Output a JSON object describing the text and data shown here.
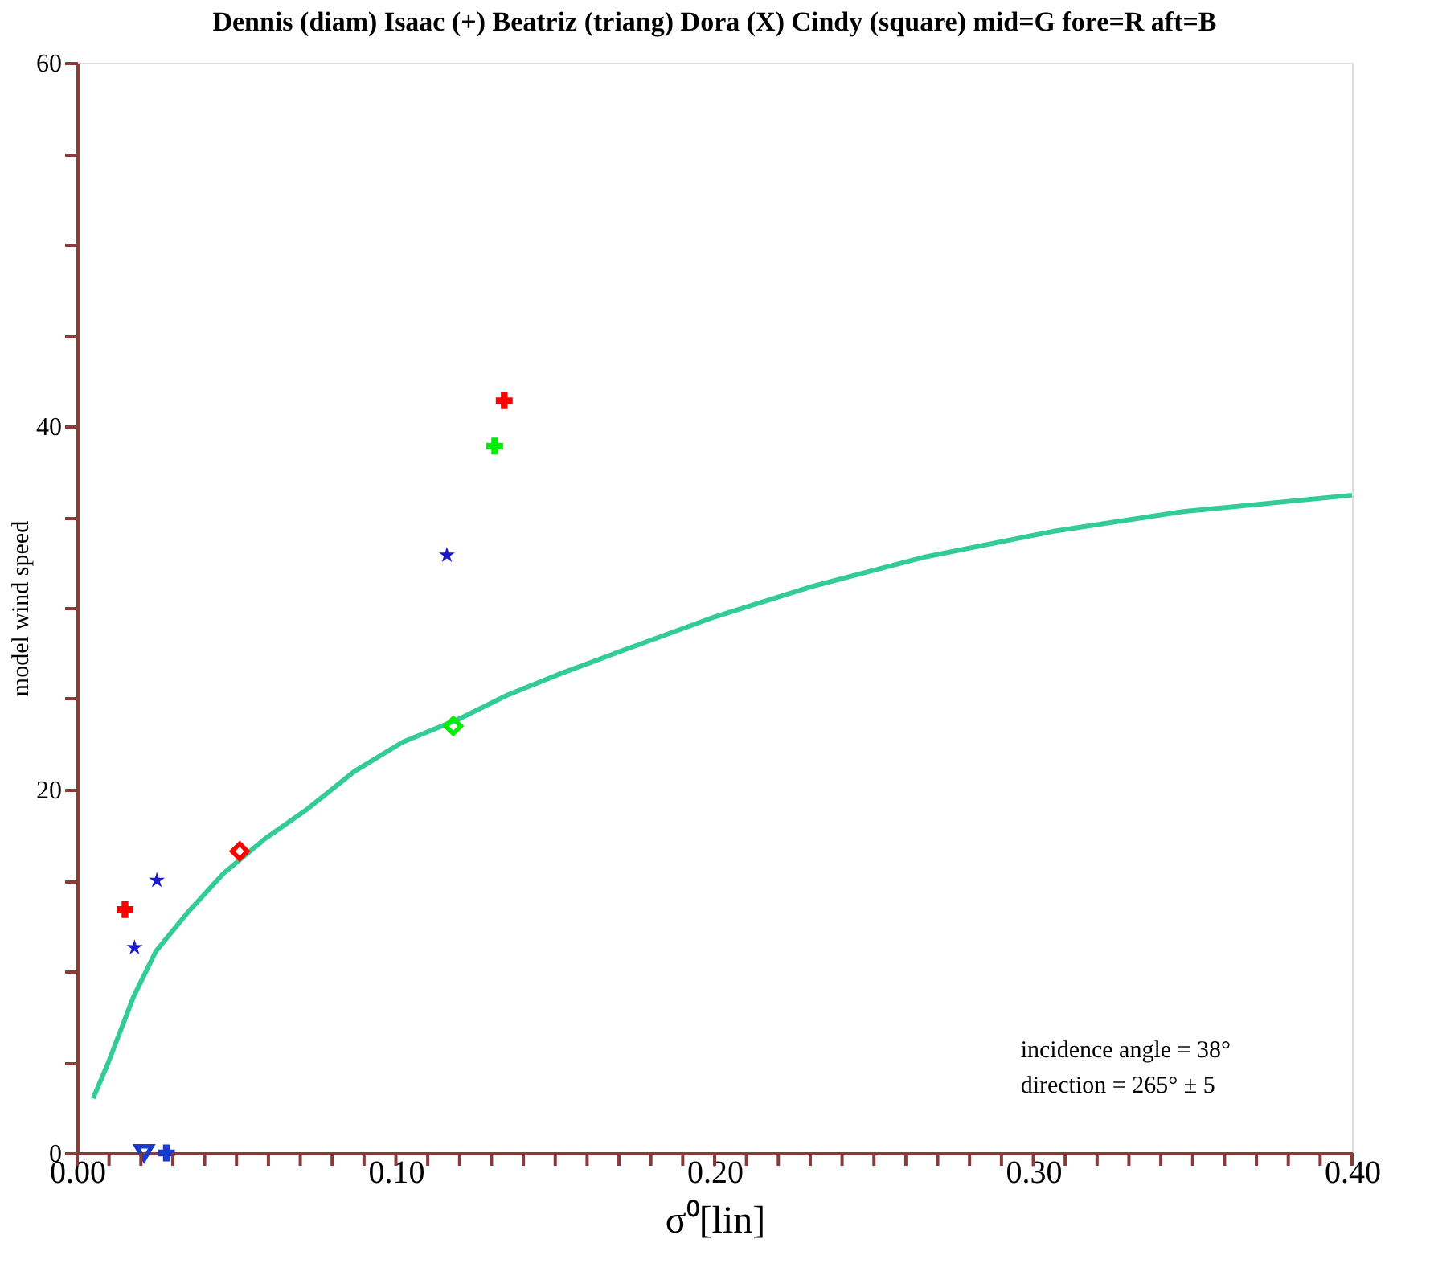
{
  "chart_data": {
    "type": "scatter",
    "title": "Dennis (diam) Isaac (+) Beatriz (triang) Dora (X) Cindy (square)  mid=G  fore=R  aft=B",
    "xlabel": "σ⁰[lin]",
    "ylabel": "model wind speed",
    "xlim": [
      0,
      0.4
    ],
    "ylim": [
      0,
      60
    ],
    "xticks": [
      {
        "value": 0,
        "label": "0.00"
      },
      {
        "value": 0.01,
        "label": null
      },
      {
        "value": 0.02,
        "label": null
      },
      {
        "value": 0.03,
        "label": null
      },
      {
        "value": 0.04,
        "label": null
      },
      {
        "value": 0.05,
        "label": null
      },
      {
        "value": 0.06,
        "label": null
      },
      {
        "value": 0.07,
        "label": null
      },
      {
        "value": 0.08,
        "label": null
      },
      {
        "value": 0.09,
        "label": null
      },
      {
        "value": 0.1,
        "label": "0.10"
      },
      {
        "value": 0.11,
        "label": null
      },
      {
        "value": 0.12,
        "label": null
      },
      {
        "value": 0.13,
        "label": null
      },
      {
        "value": 0.14,
        "label": null
      },
      {
        "value": 0.15,
        "label": null
      },
      {
        "value": 0.16,
        "label": null
      },
      {
        "value": 0.17,
        "label": null
      },
      {
        "value": 0.18,
        "label": null
      },
      {
        "value": 0.19,
        "label": null
      },
      {
        "value": 0.2,
        "label": "0.20"
      },
      {
        "value": 0.21,
        "label": null
      },
      {
        "value": 0.22,
        "label": null
      },
      {
        "value": 0.23,
        "label": null
      },
      {
        "value": 0.24,
        "label": null
      },
      {
        "value": 0.25,
        "label": null
      },
      {
        "value": 0.26,
        "label": null
      },
      {
        "value": 0.27,
        "label": null
      },
      {
        "value": 0.28,
        "label": null
      },
      {
        "value": 0.29,
        "label": null
      },
      {
        "value": 0.3,
        "label": "0.30"
      },
      {
        "value": 0.31,
        "label": null
      },
      {
        "value": 0.32,
        "label": null
      },
      {
        "value": 0.33,
        "label": null
      },
      {
        "value": 0.34,
        "label": null
      },
      {
        "value": 0.35,
        "label": null
      },
      {
        "value": 0.36,
        "label": null
      },
      {
        "value": 0.37,
        "label": null
      },
      {
        "value": 0.38,
        "label": null
      },
      {
        "value": 0.39,
        "label": null
      },
      {
        "value": 0.4,
        "label": "0.40"
      }
    ],
    "yticks": [
      0,
      {
        "value": 5,
        "label": null
      },
      {
        "value": 10,
        "label": null
      },
      {
        "value": 15,
        "label": null
      },
      20,
      {
        "value": 25,
        "label": null
      },
      {
        "value": 30,
        "label": null
      },
      {
        "value": 35,
        "label": null
      },
      40,
      {
        "value": 45,
        "label": null
      },
      {
        "value": 50,
        "label": null
      },
      {
        "value": 55,
        "label": null
      },
      60
    ],
    "grid": false,
    "annotations": [
      "incidence angle = 38°",
      "direction = 265° ± 5"
    ],
    "series": [
      {
        "type": "line",
        "color": "#33cc99",
        "marker": "none",
        "line_style": "solid",
        "x": [
          0.005,
          0.0096,
          0.0177,
          0.0247,
          0.035,
          0.046,
          0.059,
          0.072,
          0.087,
          0.102,
          0.12,
          0.135,
          0.152,
          0.175,
          0.2,
          0.231,
          0.266,
          0.306,
          0.347,
          0.4
        ],
        "values": [
          3.0,
          4.9,
          8.6,
          11.1,
          13.3,
          15.4,
          17.3,
          18.9,
          21.0,
          22.6,
          23.9,
          25.2,
          26.4,
          27.9,
          29.5,
          31.2,
          32.8,
          34.2,
          35.3,
          36.2
        ]
      },
      {
        "color": "#ff0000",
        "marker": "cross",
        "x": [
          0.134
        ],
        "values": [
          41.4
        ]
      },
      {
        "color": "#00ee00",
        "marker": "cross",
        "x": [
          0.131
        ],
        "values": [
          38.9
        ]
      },
      {
        "color": "#ff0000",
        "marker": "cross",
        "x": [
          0.015
        ],
        "values": [
          13.4
        ]
      },
      {
        "color": "#1a1acc",
        "marker": "star",
        "x": [
          0.116,
          0.025,
          0.018
        ],
        "values": [
          32.9,
          15.0,
          11.3
        ]
      },
      {
        "color": "#00ee00",
        "marker": "diamond",
        "x": [
          0.118
        ],
        "values": [
          23.5
        ]
      },
      {
        "color": "#ff0000",
        "marker": "diamond",
        "x": [
          0.051
        ],
        "values": [
          16.6
        ]
      },
      {
        "color": "#1a3acc",
        "marker": "triangle",
        "x": [
          0.021
        ],
        "values": [
          0
        ]
      },
      {
        "color": "#1a3acc",
        "marker": "cross",
        "x": [
          0.028
        ],
        "values": [
          0
        ]
      }
    ]
  }
}
